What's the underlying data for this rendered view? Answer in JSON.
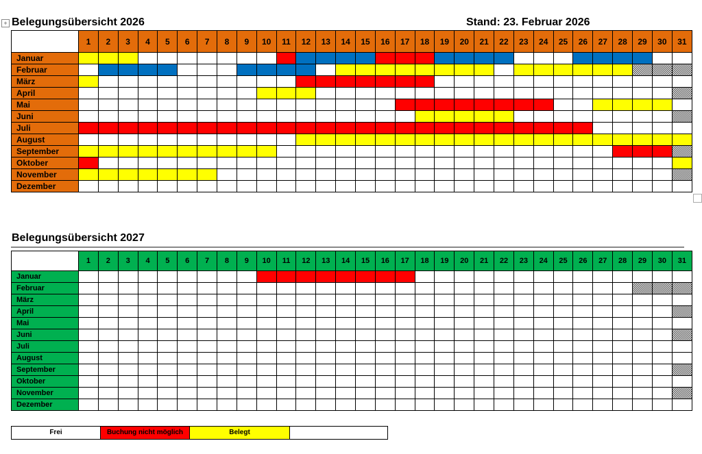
{
  "doc1": {
    "title": "Belegungsübersicht 2026",
    "stand": "Stand: 23. Februar 2026",
    "header_color": "#e36c0a",
    "rows": [
      {
        "month": "Januar",
        "runs": [
          [
            "y",
            3
          ],
          [
            "w",
            7
          ],
          [
            "r",
            1
          ],
          [
            "b",
            4
          ],
          [
            "r",
            3
          ],
          [
            "b",
            4
          ],
          [
            "w",
            3
          ],
          [
            "b",
            4
          ],
          [
            "w",
            2
          ]
        ]
      },
      {
        "month": "Februar",
        "runs": [
          [
            "w",
            1
          ],
          [
            "b",
            4
          ],
          [
            "w",
            3
          ],
          [
            "b",
            4
          ],
          [
            "w",
            1
          ],
          [
            "y",
            8
          ],
          [
            "w",
            1
          ],
          [
            "y",
            6
          ],
          [
            "x",
            3
          ]
        ]
      },
      {
        "month": "März",
        "runs": [
          [
            "y",
            1
          ],
          [
            "w",
            10
          ],
          [
            "r",
            7
          ],
          [
            "w",
            13
          ]
        ]
      },
      {
        "month": "April",
        "runs": [
          [
            "w",
            9
          ],
          [
            "y",
            3
          ],
          [
            "w",
            18
          ],
          [
            "x",
            1
          ]
        ]
      },
      {
        "month": "Mai",
        "runs": [
          [
            "w",
            16
          ],
          [
            "r",
            8
          ],
          [
            "w",
            2
          ],
          [
            "y",
            4
          ],
          [
            "w",
            1
          ]
        ]
      },
      {
        "month": "Juni",
        "runs": [
          [
            "w",
            17
          ],
          [
            "y",
            5
          ],
          [
            "w",
            8
          ],
          [
            "x",
            1
          ]
        ]
      },
      {
        "month": "Juli",
        "runs": [
          [
            "r",
            26
          ],
          [
            "w",
            5
          ]
        ]
      },
      {
        "month": "August",
        "runs": [
          [
            "w",
            11
          ],
          [
            "y",
            20
          ]
        ]
      },
      {
        "month": "September",
        "runs": [
          [
            "y",
            10
          ],
          [
            "w",
            17
          ],
          [
            "r",
            3
          ],
          [
            "x",
            1
          ]
        ]
      },
      {
        "month": "Oktober",
        "runs": [
          [
            "r",
            1
          ],
          [
            "w",
            29
          ],
          [
            "y",
            1
          ]
        ]
      },
      {
        "month": "November",
        "runs": [
          [
            "y",
            7
          ],
          [
            "w",
            23
          ],
          [
            "x",
            1
          ]
        ]
      },
      {
        "month": "Dezember",
        "runs": [
          [
            "w",
            31
          ]
        ]
      }
    ]
  },
  "doc2": {
    "title": "Belegungsübersicht 2027",
    "header_color": "#00b050",
    "rows": [
      {
        "month": "Januar",
        "runs": [
          [
            "w",
            9
          ],
          [
            "r",
            8
          ],
          [
            "w",
            14
          ]
        ]
      },
      {
        "month": "Februar",
        "runs": [
          [
            "w",
            28
          ],
          [
            "x",
            3
          ]
        ]
      },
      {
        "month": "März",
        "runs": [
          [
            "w",
            31
          ]
        ]
      },
      {
        "month": "April",
        "runs": [
          [
            "w",
            30
          ],
          [
            "x",
            1
          ]
        ]
      },
      {
        "month": "Mai",
        "runs": [
          [
            "w",
            31
          ]
        ]
      },
      {
        "month": "Juni",
        "runs": [
          [
            "w",
            30
          ],
          [
            "x",
            1
          ]
        ]
      },
      {
        "month": "Juli",
        "runs": [
          [
            "w",
            31
          ]
        ]
      },
      {
        "month": "August",
        "runs": [
          [
            "w",
            31
          ]
        ]
      },
      {
        "month": "September",
        "runs": [
          [
            "w",
            30
          ],
          [
            "x",
            1
          ]
        ]
      },
      {
        "month": "Oktober",
        "runs": [
          [
            "w",
            31
          ]
        ]
      },
      {
        "month": "November",
        "runs": [
          [
            "w",
            30
          ],
          [
            "x",
            1
          ]
        ]
      },
      {
        "month": "Dezember",
        "runs": [
          [
            "w",
            31
          ]
        ]
      }
    ]
  },
  "status_colors": {
    "w": "#ffffff",
    "y": "#ffff00",
    "r": "#ff0000",
    "b": "#0070c0",
    "x": "checkered"
  },
  "legend": {
    "frei": "Frei",
    "nicht_moeglich": "Buchung nicht möglich",
    "belegt": "Belegt",
    "empty": ""
  }
}
